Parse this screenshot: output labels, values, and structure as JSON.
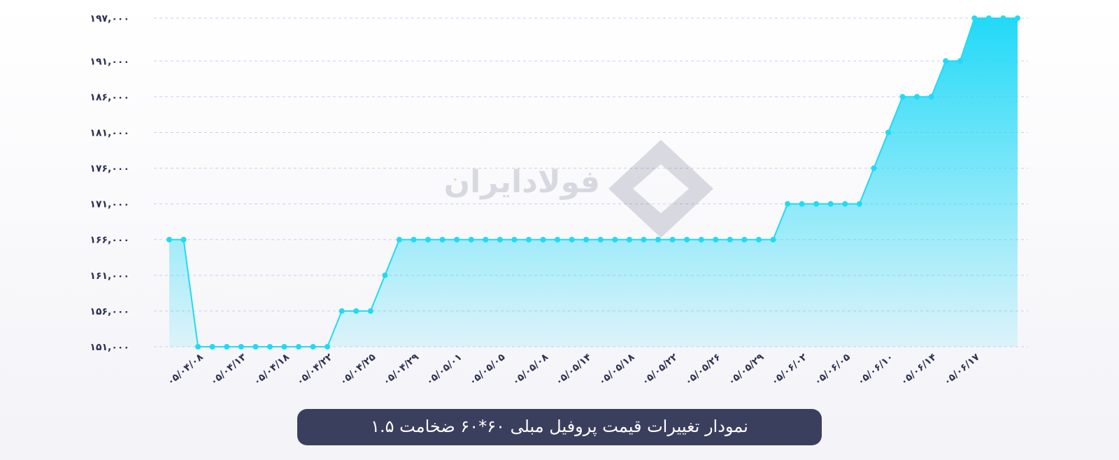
{
  "chart_data": {
    "type": "line",
    "title": "نمودار تغییرات قیمت پروفیل مبلی ۶۰*۶۰ ضخامت ۱.۵",
    "watermark": "فولادایران",
    "color": "#22d9f7",
    "grid": true,
    "categories": [
      null,
      null,
      "۰۵/۰۴/۰۸",
      null,
      null,
      "۰۵/۰۴/۱۳",
      null,
      null,
      "۰۵/۰۴/۱۸",
      null,
      null,
      "۰۵/۰۴/۲۲",
      null,
      null,
      "۰۵/۰۴/۲۵",
      null,
      null,
      "۰۵/۰۴/۲۹",
      null,
      null,
      "۰۵/۰۵/۰۱",
      null,
      null,
      "۰۵/۰۵/۰۵",
      null,
      null,
      "۰۵/۰۵/۰۸",
      null,
      null,
      "۰۵/۰۵/۱۴",
      null,
      null,
      "۰۵/۰۵/۱۸",
      null,
      null,
      "۰۵/۰۵/۲۲",
      null,
      null,
      "۰۵/۰۵/۲۶",
      null,
      null,
      "۰۵/۰۵/۲۹",
      null,
      null,
      "۰۵/۰۶/۰۲",
      null,
      null,
      "۰۵/۰۶/۰۵",
      null,
      null,
      "۰۵/۰۶/۱۰",
      null,
      null,
      "۰۵/۰۶/۱۴",
      null,
      null,
      "۰۵/۰۶/۱۷",
      null,
      null,
      null
    ],
    "values": [
      166000,
      166000,
      151000,
      151000,
      151000,
      151000,
      151000,
      151000,
      151000,
      151000,
      151000,
      151000,
      156000,
      156000,
      156000,
      161000,
      166000,
      166000,
      166000,
      166000,
      166000,
      166000,
      166000,
      166000,
      166000,
      166000,
      166000,
      166000,
      166000,
      166000,
      166000,
      166000,
      166000,
      166000,
      166000,
      166000,
      166000,
      166000,
      166000,
      166000,
      166000,
      166000,
      166000,
      171000,
      171000,
      171000,
      171000,
      171000,
      171000,
      176000,
      181000,
      186000,
      186000,
      186000,
      191000,
      191000,
      197000,
      197000,
      197000,
      197000
    ],
    "ylim": [
      151000,
      197000
    ],
    "yticks": [
      {
        "value": 151000,
        "label": "۱۵۱,۰۰۰"
      },
      {
        "value": 156000,
        "label": "۱۵۶,۰۰۰"
      },
      {
        "value": 161000,
        "label": "۱۶۱,۰۰۰"
      },
      {
        "value": 166000,
        "label": "۱۶۶,۰۰۰"
      },
      {
        "value": 171000,
        "label": "۱۷۱,۰۰۰"
      },
      {
        "value": 176000,
        "label": "۱۷۶,۰۰۰"
      },
      {
        "value": 181000,
        "label": "۱۸۱,۰۰۰"
      },
      {
        "value": 186000,
        "label": "۱۸۶,۰۰۰"
      },
      {
        "value": 191000,
        "label": "۱۹۱,۰۰۰"
      },
      {
        "value": 197000,
        "label": "۱۹۷,۰۰۰"
      }
    ]
  }
}
